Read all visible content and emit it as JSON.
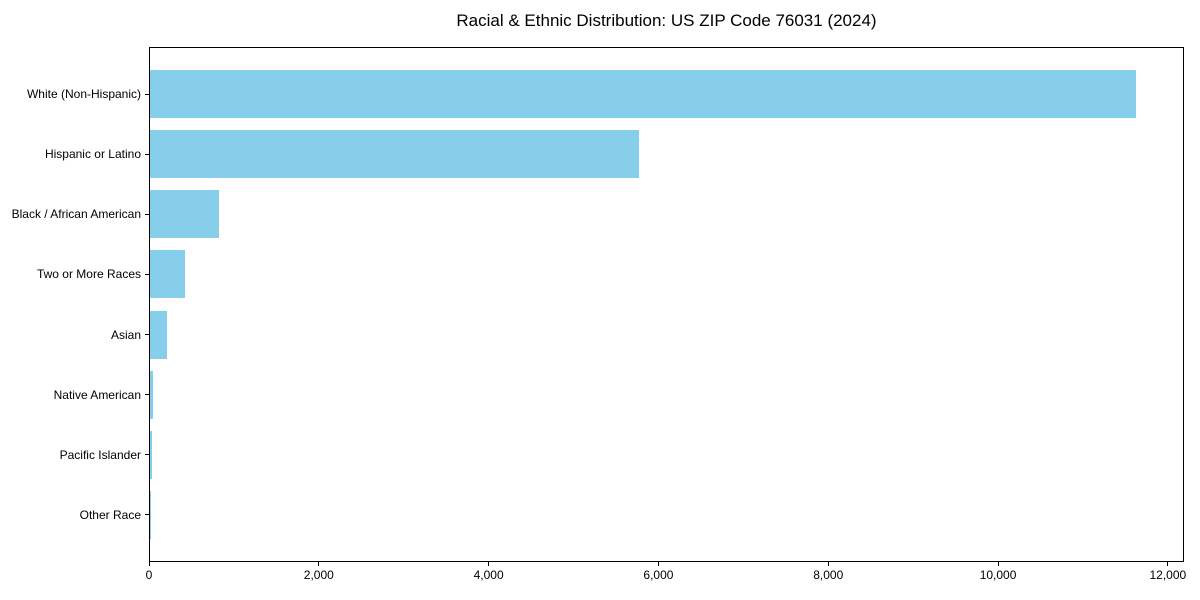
{
  "chart_data": {
    "type": "bar",
    "orientation": "horizontal",
    "title": "Racial & Ethnic Distribution: US ZIP Code 76031 (2024)",
    "categories": [
      "White (Non-Hispanic)",
      "Hispanic or Latino",
      "Black / African American",
      "Two or More Races",
      "Asian",
      "Native American",
      "Pacific Islander",
      "Other Race"
    ],
    "values": [
      11610,
      5755,
      815,
      410,
      200,
      35,
      25,
      6
    ],
    "xlabel": "",
    "ylabel": "",
    "xlim": [
      0,
      12190
    ],
    "x_ticks": [
      0,
      2000,
      4000,
      6000,
      8000,
      10000,
      12000
    ],
    "x_tick_labels": [
      "0",
      "2,000",
      "4,000",
      "6,000",
      "8,000",
      "10,000",
      "12,000"
    ],
    "bar_color": "#87ceeb",
    "axis_color": "#000000",
    "background_color": "#ffffff",
    "grid": false,
    "legend_position": "none"
  }
}
